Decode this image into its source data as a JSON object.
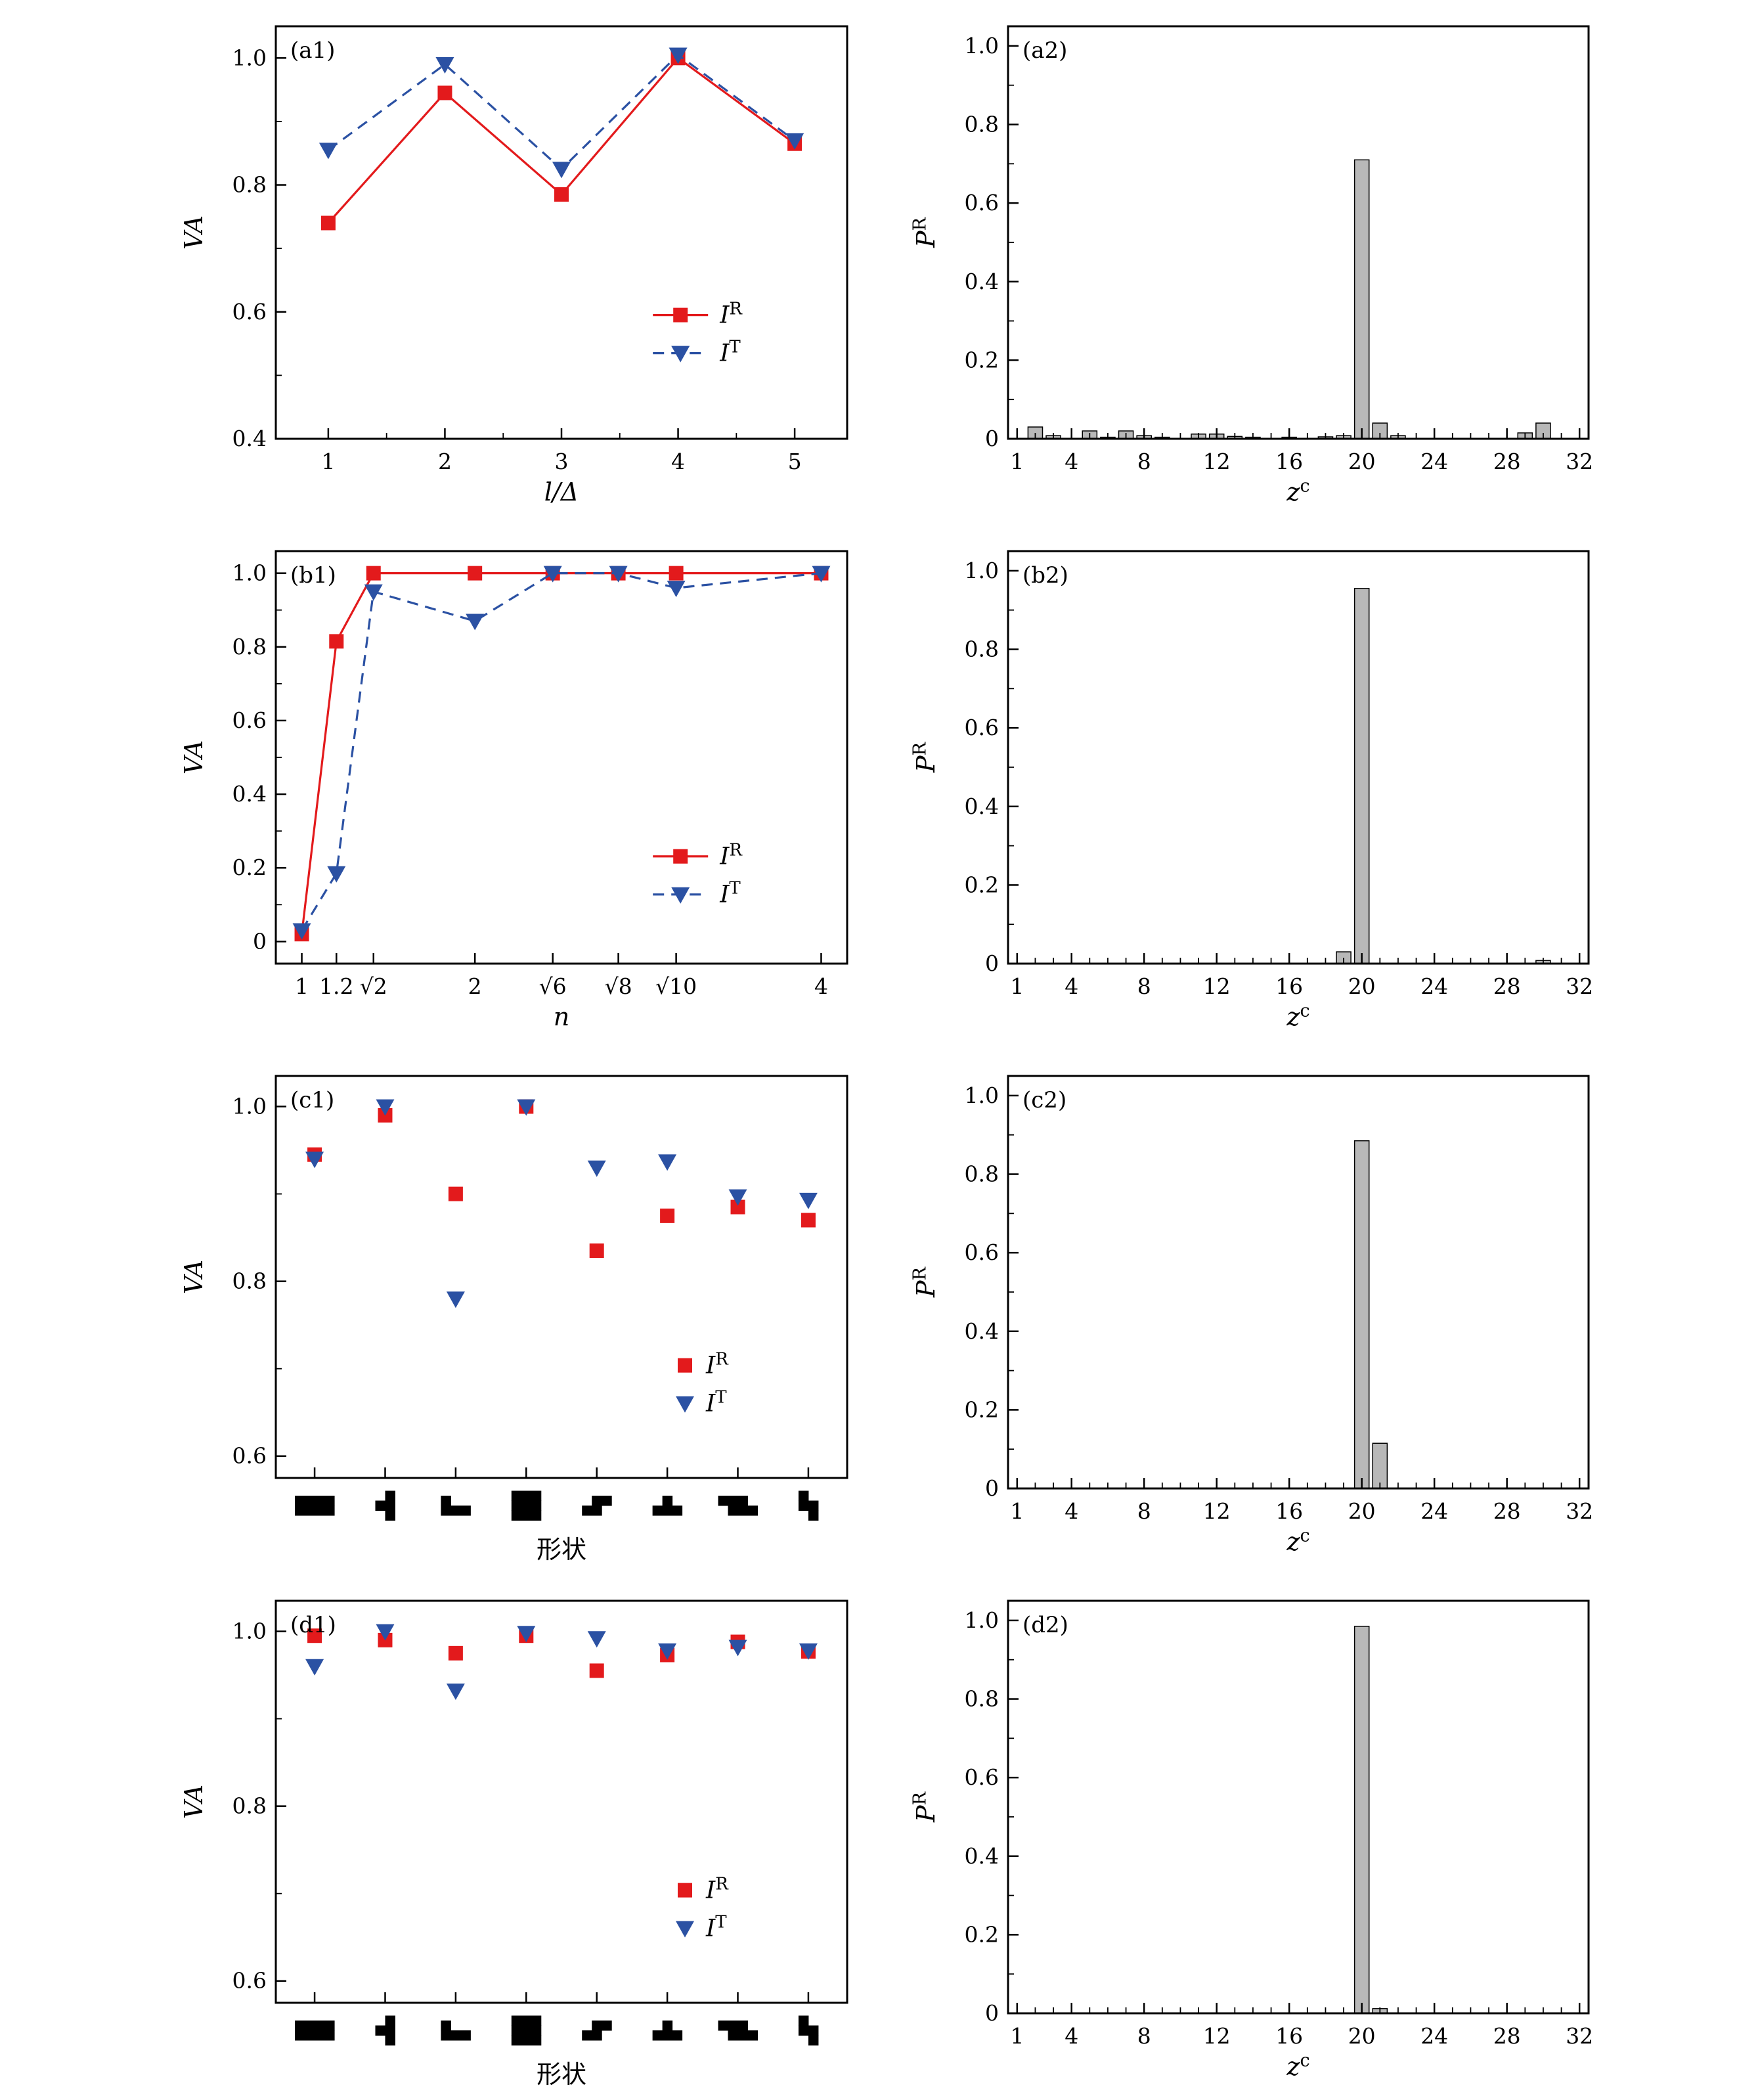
{
  "colors": {
    "red": "#e31a1c",
    "blue": "#2b51a3",
    "bar_fill": "#b8b8b8",
    "bar_stroke": "#000000",
    "axis": "#000000",
    "background": "#ffffff"
  },
  "shapes": [
    [
      [
        1,
        1,
        1,
        1
      ],
      [
        1,
        1,
        1,
        1
      ]
    ],
    [
      [
        0,
        1
      ],
      [
        1,
        1
      ],
      [
        0,
        1
      ]
    ],
    [
      [
        1,
        0,
        0
      ],
      [
        1,
        1,
        1
      ]
    ],
    [
      [
        1,
        1,
        1
      ],
      [
        1,
        1,
        1
      ],
      [
        1,
        1,
        1
      ]
    ],
    [
      [
        0,
        1,
        1
      ],
      [
        1,
        1,
        0
      ]
    ],
    [
      [
        0,
        1,
        0
      ],
      [
        1,
        1,
        1
      ]
    ],
    [
      [
        1,
        1,
        1,
        0
      ],
      [
        0,
        1,
        1,
        1
      ]
    ],
    [
      [
        1,
        0
      ],
      [
        1,
        1
      ],
      [
        0,
        1
      ]
    ]
  ],
  "chart_data": [
    {
      "id": "a1",
      "label": "(a1)",
      "type": "line",
      "xlabel_parts": [
        {
          "t": "l/Δ",
          "i": true
        }
      ],
      "ylabel_parts": [
        {
          "t": "VA",
          "i": true
        }
      ],
      "xlim": [
        0.55,
        5.45
      ],
      "ylim": [
        0.4,
        1.05
      ],
      "xticks": [
        1,
        2,
        3,
        4,
        5
      ],
      "xtick_labels": [
        "1",
        "2",
        "3",
        "4",
        "5"
      ],
      "xminor": "midpoints",
      "yticks": [
        0.4,
        0.6,
        0.8,
        1.0
      ],
      "ytick_labels": [
        "0.4",
        "0.6",
        "0.8",
        "1.0"
      ],
      "series": [
        {
          "name_parts": [
            {
              "t": "I",
              "i": true
            },
            {
              "t": "R",
              "sup": true
            }
          ],
          "color": "red",
          "marker": "square",
          "dash": false,
          "x": [
            1,
            2,
            3,
            4,
            5
          ],
          "y": [
            0.74,
            0.945,
            0.785,
            1.0,
            0.865
          ]
        },
        {
          "name_parts": [
            {
              "t": "I",
              "i": true
            },
            {
              "t": "T",
              "sup": true
            }
          ],
          "color": "blue",
          "marker": "triangle",
          "dash": true,
          "x": [
            1,
            2,
            3,
            4,
            5
          ],
          "y": [
            0.855,
            0.99,
            0.825,
            1.005,
            0.87
          ]
        }
      ],
      "legend": {
        "fx": 0.66,
        "fy": 0.7,
        "show_line": true
      }
    },
    {
      "id": "a2",
      "label": "(a2)",
      "type": "bar",
      "xlabel_parts": [
        {
          "t": "z",
          "i": true
        },
        {
          "t": "c",
          "sup": true
        }
      ],
      "ylabel_parts": [
        {
          "t": "P",
          "i": true
        },
        {
          "t": "R",
          "sup": true
        }
      ],
      "xlim": [
        0.5,
        32.5
      ],
      "ylim": [
        0,
        1.05
      ],
      "xticks": [
        1,
        4,
        8,
        12,
        16,
        20,
        24,
        28,
        32
      ],
      "xtick_labels": [
        "1",
        "4",
        "8",
        "12",
        "16",
        "20",
        "24",
        "28",
        "32"
      ],
      "xminor": "integers",
      "yticks": [
        0,
        0.2,
        0.4,
        0.6,
        0.8,
        1.0
      ],
      "ytick_labels": [
        "0",
        "0.2",
        "0.4",
        "0.6",
        "0.8",
        "1.0"
      ],
      "bars": [
        [
          2,
          0.03
        ],
        [
          3,
          0.008
        ],
        [
          5,
          0.02
        ],
        [
          6,
          0.004
        ],
        [
          7,
          0.02
        ],
        [
          8,
          0.008
        ],
        [
          9,
          0.004
        ],
        [
          11,
          0.012
        ],
        [
          12,
          0.012
        ],
        [
          13,
          0.006
        ],
        [
          14,
          0.004
        ],
        [
          16,
          0.004
        ],
        [
          18,
          0.005
        ],
        [
          19,
          0.008
        ],
        [
          20,
          0.71
        ],
        [
          21,
          0.04
        ],
        [
          22,
          0.008
        ],
        [
          29,
          0.015
        ],
        [
          30,
          0.04
        ]
      ]
    },
    {
      "id": "b1",
      "label": "(b1)",
      "type": "line",
      "xlabel_parts": [
        {
          "t": "n",
          "i": true
        }
      ],
      "ylabel_parts": [
        {
          "t": "VA",
          "i": true
        }
      ],
      "xlim": [
        0.85,
        4.15
      ],
      "ylim": [
        -0.06,
        1.06
      ],
      "xticks": [
        1,
        1.2,
        1.4142,
        2,
        2.4495,
        2.8284,
        3.1623,
        4
      ],
      "xtick_labels": [
        "1",
        "1.2",
        "√2",
        "2",
        "√6",
        "√8",
        "√10",
        "4"
      ],
      "xminor": "none",
      "yticks": [
        0,
        0.2,
        0.4,
        0.6,
        0.8,
        1.0
      ],
      "ytick_labels": [
        "0",
        "0.2",
        "0.4",
        "0.6",
        "0.8",
        "1.0"
      ],
      "series": [
        {
          "name_parts": [
            {
              "t": "I",
              "i": true
            },
            {
              "t": "R",
              "sup": true
            }
          ],
          "color": "red",
          "marker": "square",
          "dash": false,
          "x": [
            1,
            1.2,
            1.4142,
            2,
            2.4495,
            2.8284,
            3.1623,
            4
          ],
          "y": [
            0.02,
            0.815,
            1.0,
            1.0,
            1.0,
            1.0,
            1.0,
            1.0
          ]
        },
        {
          "name_parts": [
            {
              "t": "I",
              "i": true
            },
            {
              "t": "T",
              "sup": true
            }
          ],
          "color": "blue",
          "marker": "triangle",
          "dash": true,
          "x": [
            1,
            1.2,
            1.4142,
            2,
            2.4495,
            2.8284,
            3.1623,
            4
          ],
          "y": [
            0.03,
            0.185,
            0.95,
            0.87,
            1.0,
            1.0,
            0.96,
            1.0
          ]
        }
      ],
      "legend": {
        "fx": 0.66,
        "fy": 0.74,
        "show_line": true
      }
    },
    {
      "id": "b2",
      "label": "(b2)",
      "type": "bar",
      "xlabel_parts": [
        {
          "t": "z",
          "i": true
        },
        {
          "t": "c",
          "sup": true
        }
      ],
      "ylabel_parts": [
        {
          "t": "P",
          "i": true
        },
        {
          "t": "R",
          "sup": true
        }
      ],
      "xlim": [
        0.5,
        32.5
      ],
      "ylim": [
        0,
        1.05
      ],
      "xticks": [
        1,
        4,
        8,
        12,
        16,
        20,
        24,
        28,
        32
      ],
      "xtick_labels": [
        "1",
        "4",
        "8",
        "12",
        "16",
        "20",
        "24",
        "28",
        "32"
      ],
      "xminor": "integers",
      "yticks": [
        0,
        0.2,
        0.4,
        0.6,
        0.8,
        1.0
      ],
      "ytick_labels": [
        "0",
        "0.2",
        "0.4",
        "0.6",
        "0.8",
        "1.0"
      ],
      "bars": [
        [
          19,
          0.03
        ],
        [
          20,
          0.955
        ],
        [
          30,
          0.008
        ]
      ]
    },
    {
      "id": "c1",
      "label": "(c1)",
      "type": "scatter",
      "shape_ticks": true,
      "xlabel_parts": [
        {
          "t": "形状"
        }
      ],
      "ylabel_parts": [
        {
          "t": "VA",
          "i": true
        }
      ],
      "xlim": [
        0.45,
        8.55
      ],
      "ylim": [
        0.575,
        1.035
      ],
      "xticks": [
        1,
        2,
        3,
        4,
        5,
        6,
        7,
        8
      ],
      "xminor": "none",
      "yticks": [
        0.6,
        0.8,
        1.0
      ],
      "ytick_labels": [
        "0.6",
        "0.8",
        "1.0"
      ],
      "series": [
        {
          "name_parts": [
            {
              "t": "I",
              "i": true
            },
            {
              "t": "R",
              "sup": true
            }
          ],
          "color": "red",
          "marker": "square",
          "dash": false,
          "x": [
            1,
            2,
            3,
            4,
            5,
            6,
            7,
            8
          ],
          "y": [
            0.945,
            0.99,
            0.9,
            1.0,
            0.835,
            0.875,
            0.885,
            0.87
          ]
        },
        {
          "name_parts": [
            {
              "t": "I",
              "i": true
            },
            {
              "t": "T",
              "sup": true
            }
          ],
          "color": "blue",
          "marker": "triangle",
          "dash": true,
          "x": [
            1,
            2,
            3,
            4,
            5,
            6,
            7,
            8
          ],
          "y": [
            0.94,
            1.0,
            0.78,
            1.0,
            0.93,
            0.937,
            0.897,
            0.893
          ]
        }
      ],
      "legend": {
        "fx": 0.7,
        "fy": 0.72,
        "show_line": false
      }
    },
    {
      "id": "c2",
      "label": "(c2)",
      "type": "bar",
      "xlabel_parts": [
        {
          "t": "z",
          "i": true
        },
        {
          "t": "c",
          "sup": true
        }
      ],
      "ylabel_parts": [
        {
          "t": "P",
          "i": true
        },
        {
          "t": "R",
          "sup": true
        }
      ],
      "xlim": [
        0.5,
        32.5
      ],
      "ylim": [
        0,
        1.05
      ],
      "xticks": [
        1,
        4,
        8,
        12,
        16,
        20,
        24,
        28,
        32
      ],
      "xtick_labels": [
        "1",
        "4",
        "8",
        "12",
        "16",
        "20",
        "24",
        "28",
        "32"
      ],
      "xminor": "integers",
      "yticks": [
        0,
        0.2,
        0.4,
        0.6,
        0.8,
        1.0
      ],
      "ytick_labels": [
        "0",
        "0.2",
        "0.4",
        "0.6",
        "0.8",
        "1.0"
      ],
      "bars": [
        [
          20,
          0.885
        ],
        [
          21,
          0.115
        ]
      ]
    },
    {
      "id": "d1",
      "label": "(d1)",
      "type": "scatter",
      "shape_ticks": true,
      "xlabel_parts": [
        {
          "t": "形状"
        }
      ],
      "ylabel_parts": [
        {
          "t": "VA",
          "i": true
        }
      ],
      "xlim": [
        0.45,
        8.55
      ],
      "ylim": [
        0.575,
        1.035
      ],
      "xticks": [
        1,
        2,
        3,
        4,
        5,
        6,
        7,
        8
      ],
      "xminor": "none",
      "yticks": [
        0.6,
        0.8,
        1.0
      ],
      "ytick_labels": [
        "0.6",
        "0.8",
        "1.0"
      ],
      "series": [
        {
          "name_parts": [
            {
              "t": "I",
              "i": true
            },
            {
              "t": "R",
              "sup": true
            }
          ],
          "color": "red",
          "marker": "square",
          "dash": false,
          "x": [
            1,
            2,
            3,
            4,
            5,
            6,
            7,
            8
          ],
          "y": [
            0.995,
            0.99,
            0.975,
            0.995,
            0.955,
            0.973,
            0.988,
            0.977
          ]
        },
        {
          "name_parts": [
            {
              "t": "I",
              "i": true
            },
            {
              "t": "T",
              "sup": true
            }
          ],
          "color": "blue",
          "marker": "triangle",
          "dash": true,
          "x": [
            1,
            2,
            3,
            4,
            5,
            6,
            7,
            8
          ],
          "y": [
            0.96,
            1.0,
            0.932,
            0.998,
            0.992,
            0.978,
            0.982,
            0.978
          ]
        }
      ],
      "legend": {
        "fx": 0.7,
        "fy": 0.72,
        "show_line": false
      }
    },
    {
      "id": "d2",
      "label": "(d2)",
      "type": "bar",
      "xlabel_parts": [
        {
          "t": "z",
          "i": true
        },
        {
          "t": "c",
          "sup": true
        }
      ],
      "ylabel_parts": [
        {
          "t": "P",
          "i": true
        },
        {
          "t": "R",
          "sup": true
        }
      ],
      "xlim": [
        0.5,
        32.5
      ],
      "ylim": [
        0,
        1.05
      ],
      "xticks": [
        1,
        4,
        8,
        12,
        16,
        20,
        24,
        28,
        32
      ],
      "xtick_labels": [
        "1",
        "4",
        "8",
        "12",
        "16",
        "20",
        "24",
        "28",
        "32"
      ],
      "xminor": "integers",
      "yticks": [
        0,
        0.2,
        0.4,
        0.6,
        0.8,
        1.0
      ],
      "ytick_labels": [
        "0",
        "0.2",
        "0.4",
        "0.6",
        "0.8",
        "1.0"
      ],
      "bars": [
        [
          20,
          0.985
        ],
        [
          21,
          0.012
        ]
      ]
    }
  ]
}
